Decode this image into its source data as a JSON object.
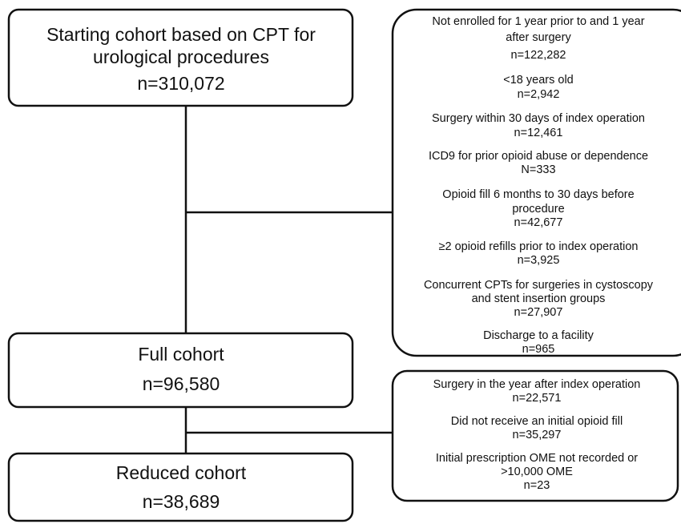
{
  "nodes": [
    {
      "lines": [
        "Starting cohort based on CPT for",
        "urological procedures",
        "n=310,072"
      ]
    },
    {
      "lines": [
        "Full cohort",
        "n=96,580"
      ]
    },
    {
      "lines": [
        "Reduced cohort",
        "n=38,689"
      ]
    }
  ],
  "exclusions": [
    {
      "items": [
        {
          "lines": [
            "Not enrolled for 1 year prior to and 1 year",
            "after surgery",
            "n=122,282"
          ]
        },
        {
          "lines": [
            "<18 years old",
            "n=2,942"
          ]
        },
        {
          "lines": [
            "Surgery within 30 days of index operation",
            "n=12,461"
          ]
        },
        {
          "lines": [
            "ICD9 for prior opioid abuse or dependence",
            "N=333"
          ]
        },
        {
          "lines": [
            "Opioid fill 6 months to 30 days before",
            "procedure",
            "n=42,677"
          ]
        },
        {
          "lines": [
            "≥2 opioid refills prior to index operation",
            "n=3,925"
          ]
        },
        {
          "lines": [
            "Concurrent CPTs for surgeries in cystoscopy",
            "and stent insertion groups",
            "n=27,907"
          ]
        },
        {
          "lines": [
            "Discharge to a facility",
            "n=965"
          ]
        }
      ]
    },
    {
      "items": [
        {
          "lines": [
            "Surgery in the year after index operation",
            "n=22,571"
          ]
        },
        {
          "lines": [
            "Did not receive an initial opioid fill",
            "n=35,297"
          ]
        },
        {
          "lines": [
            "Initial prescription OME not recorded or",
            ">10,000 OME",
            "n=23"
          ]
        }
      ]
    }
  ]
}
